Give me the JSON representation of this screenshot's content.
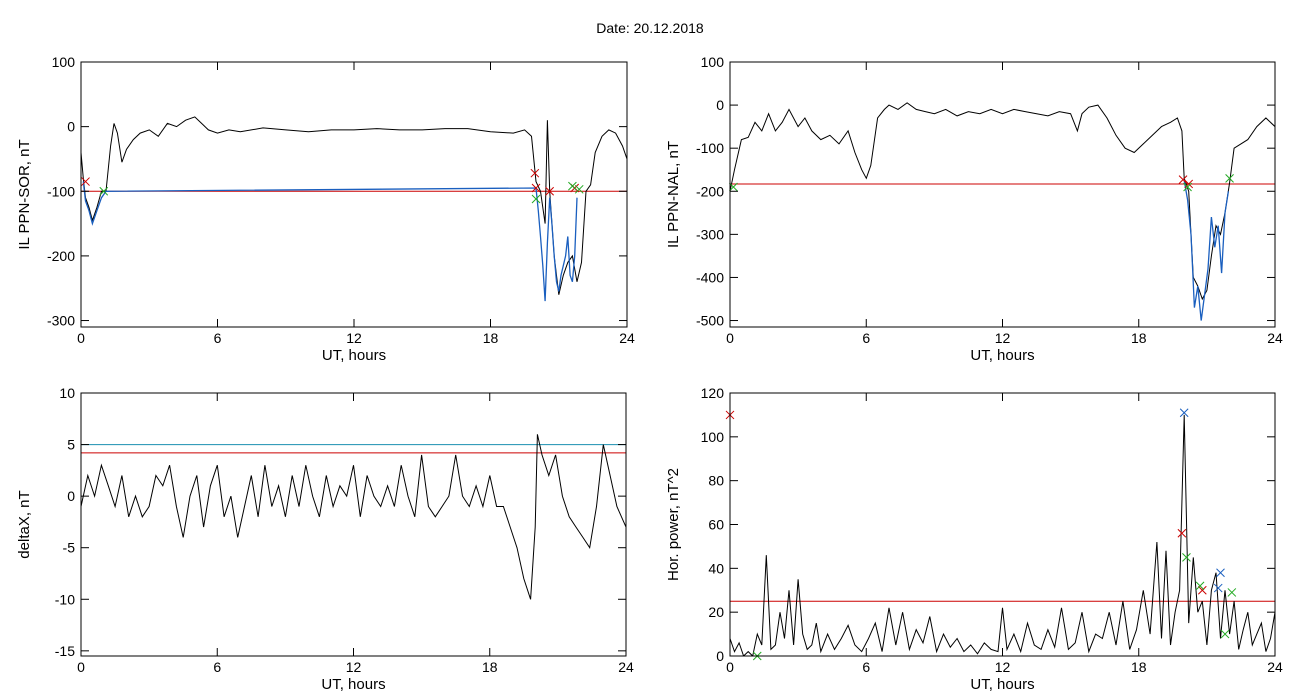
{
  "page": {
    "title": "Date:  20.12.2018"
  },
  "chart_data": [
    {
      "type": "line",
      "ylabel": "IL PPN-SOR, nT",
      "xlabel": "UT, hours",
      "xlim": [
        0,
        24
      ],
      "ylim": [
        -310,
        100
      ],
      "xticks": [
        0,
        6,
        12,
        18,
        24
      ],
      "yticks": [
        -300,
        -200,
        -100,
        0,
        100
      ],
      "grid": false,
      "series": [
        {
          "color": "#000000",
          "x": [
            0,
            0.1,
            0.2,
            0.35,
            0.5,
            0.7,
            0.9,
            1.1,
            1.3,
            1.45,
            1.6,
            1.8,
            2.0,
            2.3,
            2.6,
            3.0,
            3.4,
            3.8,
            4.2,
            4.6,
            5.0,
            5.3,
            5.6,
            6.0,
            6.5,
            7.0,
            8.0,
            9.0,
            10.0,
            11.0,
            12.0,
            13.0,
            14.0,
            15.0,
            16.0,
            17.0,
            18.0,
            19.0,
            19.5,
            19.8,
            20.0,
            20.2,
            20.4,
            20.5,
            20.6,
            20.8,
            21.0,
            21.2,
            21.4,
            21.6,
            21.8,
            22.0,
            22.2,
            22.4,
            22.6,
            22.9,
            23.2,
            23.5,
            23.8,
            24.0
          ],
          "y": [
            -40,
            -80,
            -110,
            -125,
            -145,
            -125,
            -100,
            -100,
            -30,
            5,
            -10,
            -55,
            -35,
            -20,
            -10,
            -5,
            -15,
            5,
            0,
            10,
            15,
            5,
            -5,
            -10,
            -5,
            -8,
            -2,
            -5,
            -8,
            -5,
            -5,
            -3,
            -5,
            -5,
            -3,
            -3,
            -8,
            -10,
            -5,
            -15,
            -85,
            -100,
            -150,
            10,
            -100,
            -200,
            -260,
            -230,
            -210,
            -200,
            -240,
            -210,
            -100,
            -90,
            -40,
            -15,
            -5,
            -10,
            -30,
            -50
          ]
        },
        {
          "color": "#1a5fbf",
          "x": [
            0.1,
            0.2,
            0.35,
            0.5,
            0.7,
            0.9,
            1.1,
            20.0,
            20.1,
            20.2,
            20.3,
            20.4,
            20.5,
            20.6,
            20.7,
            20.8,
            20.9,
            21.0,
            21.1,
            21.2,
            21.3,
            21.4,
            21.5,
            21.6,
            21.7,
            21.8
          ],
          "y": [
            -85,
            -115,
            -130,
            -150,
            -130,
            -110,
            -100,
            -95,
            -130,
            -170,
            -215,
            -270,
            -180,
            -110,
            -150,
            -200,
            -240,
            -255,
            -230,
            -215,
            -200,
            -170,
            -230,
            -240,
            -200,
            -110
          ]
        }
      ],
      "hlines": [
        {
          "y": -100,
          "color": "#cc0000"
        }
      ],
      "markers": [
        {
          "x": 0.2,
          "y": -85,
          "color": "#cc0000"
        },
        {
          "x": 19.95,
          "y": -72,
          "color": "#cc0000"
        },
        {
          "x": 20.0,
          "y": -95,
          "color": "#cc0000"
        },
        {
          "x": 20.6,
          "y": -100,
          "color": "#cc0000"
        },
        {
          "x": 21.7,
          "y": -95,
          "color": "#cc0000"
        },
        {
          "x": 1.0,
          "y": -100,
          "color": "#22aa22"
        },
        {
          "x": 20.0,
          "y": -112,
          "color": "#22aa22"
        },
        {
          "x": 21.6,
          "y": -92,
          "color": "#22aa22"
        },
        {
          "x": 21.9,
          "y": -97,
          "color": "#22aa22"
        }
      ]
    },
    {
      "type": "line",
      "ylabel": "IL PPN-NAL, nT",
      "xlabel": "UT, hours",
      "xlim": [
        0,
        24
      ],
      "ylim": [
        -515,
        100
      ],
      "xticks": [
        0,
        6,
        12,
        18,
        24
      ],
      "yticks": [
        -500,
        -400,
        -300,
        -200,
        -100,
        0,
        100
      ],
      "grid": false,
      "series": [
        {
          "color": "#000000",
          "x": [
            0,
            0.2,
            0.5,
            0.8,
            1.1,
            1.4,
            1.7,
            2.0,
            2.3,
            2.6,
            3.0,
            3.3,
            3.6,
            4.0,
            4.4,
            4.8,
            5.2,
            5.5,
            5.8,
            6.0,
            6.2,
            6.5,
            6.8,
            7.0,
            7.4,
            7.8,
            8.2,
            8.6,
            9.0,
            9.5,
            10.0,
            10.5,
            11.0,
            11.5,
            12.0,
            12.5,
            13.0,
            13.5,
            14.0,
            14.5,
            15.0,
            15.3,
            15.5,
            15.8,
            16.2,
            16.6,
            17.0,
            17.4,
            17.8,
            18.2,
            18.6,
            19.0,
            19.4,
            19.7,
            19.9,
            20.0,
            20.2,
            20.4,
            20.6,
            20.8,
            21.0,
            21.2,
            21.4,
            21.6,
            21.8,
            22.0,
            22.2,
            22.5,
            22.8,
            23.2,
            23.6,
            24.0
          ],
          "y": [
            -200,
            -150,
            -80,
            -75,
            -40,
            -60,
            -20,
            -60,
            -40,
            -10,
            -50,
            -30,
            -60,
            -80,
            -70,
            -90,
            -60,
            -110,
            -150,
            -170,
            -140,
            -30,
            -10,
            0,
            -10,
            5,
            -10,
            -15,
            -20,
            -10,
            -25,
            -15,
            -20,
            -10,
            -20,
            -10,
            -15,
            -20,
            -25,
            -15,
            -20,
            -60,
            -20,
            -5,
            0,
            -30,
            -70,
            -100,
            -110,
            -90,
            -70,
            -50,
            -40,
            -30,
            -60,
            -170,
            -200,
            -400,
            -420,
            -450,
            -430,
            -350,
            -280,
            -300,
            -250,
            -180,
            -100,
            -90,
            -80,
            -50,
            -30,
            -50
          ]
        },
        {
          "color": "#1a5fbf",
          "x": [
            20.0,
            20.15,
            20.3,
            20.45,
            20.6,
            20.75,
            20.9,
            21.05,
            21.2,
            21.35,
            21.5,
            21.65,
            21.8,
            21.95
          ],
          "y": [
            -175,
            -220,
            -300,
            -470,
            -420,
            -500,
            -440,
            -380,
            -260,
            -330,
            -280,
            -390,
            -250,
            -200
          ]
        }
      ],
      "hlines": [
        {
          "y": -183,
          "color": "#cc0000"
        }
      ],
      "markers": [
        {
          "x": 0.15,
          "y": -190,
          "color": "#22aa22"
        },
        {
          "x": 19.95,
          "y": -173,
          "color": "#cc0000"
        },
        {
          "x": 20.2,
          "y": -183,
          "color": "#cc0000"
        },
        {
          "x": 20.15,
          "y": -190,
          "color": "#22aa22"
        },
        {
          "x": 22.0,
          "y": -170,
          "color": "#22aa22"
        }
      ]
    },
    {
      "type": "line",
      "ylabel": "deltaX, nT",
      "xlabel": "UT, hours",
      "xlim": [
        0,
        24
      ],
      "ylim": [
        -15.5,
        10
      ],
      "xticks": [
        0,
        6,
        12,
        18,
        24
      ],
      "yticks": [
        -15,
        -10,
        -5,
        0,
        5,
        10
      ],
      "grid": false,
      "series": [
        {
          "color": "#000000",
          "x": [
            0,
            0.3,
            0.6,
            0.9,
            1.2,
            1.5,
            1.8,
            2.1,
            2.4,
            2.7,
            3.0,
            3.3,
            3.6,
            3.9,
            4.2,
            4.5,
            4.8,
            5.1,
            5.4,
            5.7,
            6.0,
            6.3,
            6.6,
            6.9,
            7.2,
            7.5,
            7.8,
            8.1,
            8.4,
            8.7,
            9.0,
            9.3,
            9.6,
            9.9,
            10.2,
            10.5,
            10.8,
            11.1,
            11.4,
            11.7,
            12.0,
            12.3,
            12.6,
            12.9,
            13.2,
            13.5,
            13.8,
            14.1,
            14.4,
            14.7,
            15.0,
            15.3,
            15.6,
            15.9,
            16.2,
            16.5,
            16.8,
            17.1,
            17.4,
            17.7,
            18.0,
            18.3,
            18.6,
            18.9,
            19.2,
            19.5,
            19.8,
            20.0,
            20.1,
            20.3,
            20.6,
            20.9,
            21.2,
            21.5,
            21.8,
            22.1,
            22.4,
            22.7,
            23.0,
            23.3,
            23.6,
            24.0
          ],
          "y": [
            -1,
            2,
            0,
            3,
            1,
            -1,
            2,
            -2,
            0,
            -2,
            -1,
            2,
            1,
            3,
            -1,
            -4,
            0,
            2,
            -3,
            1,
            3,
            -2,
            0,
            -4,
            -1,
            2,
            -2,
            3,
            -1,
            1,
            -2,
            2,
            -1,
            3,
            0,
            -2,
            2,
            -1,
            1,
            0,
            3,
            -2,
            2,
            0,
            -1,
            1,
            -1,
            3,
            0,
            -2,
            4,
            -1,
            -2,
            -1,
            0,
            4,
            0,
            -1,
            1,
            -1,
            2,
            -1,
            -1,
            -3,
            -5,
            -8,
            -10,
            -3,
            6,
            4,
            2,
            4,
            0,
            -2,
            -3,
            -4,
            -5,
            -1,
            5,
            2,
            -1,
            -3
          ]
        }
      ],
      "hlines": [
        {
          "y": 5,
          "color": "#1a8fb0"
        },
        {
          "y": 4.2,
          "color": "#cc0000"
        }
      ],
      "markers": []
    },
    {
      "type": "line",
      "ylabel": "Hor. power, nT^2",
      "xlabel": "UT, hours",
      "xlim": [
        0,
        24
      ],
      "ylim": [
        0,
        120
      ],
      "xticks": [
        0,
        6,
        12,
        18,
        24
      ],
      "yticks": [
        0,
        20,
        40,
        60,
        80,
        100,
        120
      ],
      "grid": false,
      "series": [
        {
          "color": "#000000",
          "x": [
            0,
            0.2,
            0.4,
            0.6,
            0.8,
            1.0,
            1.2,
            1.4,
            1.6,
            1.8,
            2.0,
            2.2,
            2.4,
            2.6,
            2.8,
            3.0,
            3.2,
            3.4,
            3.6,
            3.8,
            4.0,
            4.3,
            4.6,
            4.9,
            5.2,
            5.5,
            5.8,
            6.1,
            6.4,
            6.7,
            7.0,
            7.3,
            7.6,
            7.9,
            8.2,
            8.5,
            8.8,
            9.1,
            9.4,
            9.7,
            10.0,
            10.3,
            10.6,
            10.9,
            11.2,
            11.5,
            11.8,
            12.0,
            12.2,
            12.5,
            12.8,
            13.1,
            13.4,
            13.7,
            14.0,
            14.3,
            14.6,
            14.9,
            15.2,
            15.5,
            15.8,
            16.1,
            16.4,
            16.7,
            17.0,
            17.3,
            17.6,
            17.9,
            18.2,
            18.5,
            18.8,
            19.0,
            19.2,
            19.4,
            19.6,
            19.8,
            20.0,
            20.2,
            20.4,
            20.6,
            20.8,
            21.0,
            21.2,
            21.4,
            21.6,
            21.8,
            22.0,
            22.2,
            22.4,
            22.6,
            22.8,
            23.0,
            23.2,
            23.4,
            23.6,
            23.8,
            24.0
          ],
          "y": [
            8,
            2,
            6,
            0,
            2,
            0,
            10,
            5,
            46,
            3,
            5,
            20,
            8,
            30,
            5,
            35,
            10,
            3,
            5,
            15,
            2,
            10,
            3,
            8,
            14,
            5,
            2,
            8,
            15,
            2,
            22,
            5,
            20,
            3,
            12,
            6,
            18,
            2,
            10,
            4,
            8,
            2,
            5,
            1,
            6,
            3,
            2,
            22,
            3,
            10,
            2,
            15,
            5,
            3,
            12,
            4,
            22,
            3,
            6,
            20,
            2,
            10,
            8,
            20,
            5,
            25,
            3,
            12,
            30,
            10,
            52,
            8,
            48,
            5,
            20,
            30,
            110,
            15,
            45,
            20,
            25,
            5,
            30,
            38,
            8,
            30,
            10,
            25,
            3,
            12,
            20,
            5,
            10,
            15,
            2,
            8,
            20
          ]
        }
      ],
      "hlines": [
        {
          "y": 25,
          "color": "#cc0000"
        }
      ],
      "markers": [
        {
          "x": 0.0,
          "y": 110,
          "color": "#cc0000"
        },
        {
          "x": 19.9,
          "y": 56,
          "color": "#cc0000"
        },
        {
          "x": 20.8,
          "y": 30,
          "color": "#cc0000"
        },
        {
          "x": 20.0,
          "y": 111,
          "color": "#1a5fbf"
        },
        {
          "x": 21.6,
          "y": 38,
          "color": "#1a5fbf"
        },
        {
          "x": 21.5,
          "y": 31,
          "color": "#1a5fbf"
        },
        {
          "x": 20.1,
          "y": 45,
          "color": "#22aa22"
        },
        {
          "x": 20.7,
          "y": 32,
          "color": "#22aa22"
        },
        {
          "x": 21.8,
          "y": 10,
          "color": "#22aa22"
        },
        {
          "x": 22.1,
          "y": 29,
          "color": "#22aa22"
        },
        {
          "x": 1.2,
          "y": 0,
          "color": "#22aa22"
        }
      ]
    }
  ]
}
